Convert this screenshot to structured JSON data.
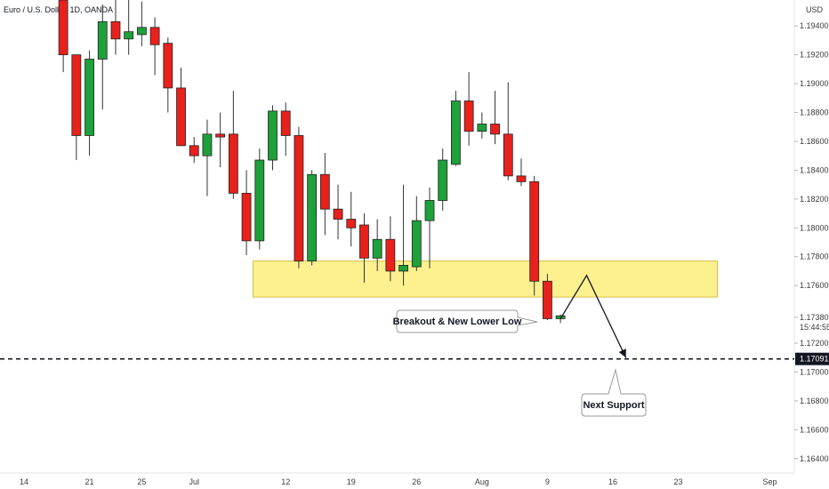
{
  "header": {
    "title": "Euro / U.S. Dollar, 1D, OANDA",
    "currency": "USD"
  },
  "colors": {
    "up": "#1ea03a",
    "down": "#e8211c",
    "zone_fill": "#fdf08e",
    "zone_stroke": "#d4c04a",
    "price_box": "#131722"
  },
  "chart_data": {
    "type": "candlestick",
    "ylim": [
      1.163,
      1.1958
    ],
    "y_ticks": [
      "1.19400",
      "1.19200",
      "1.19000",
      "1.18800",
      "1.18600",
      "1.18400",
      "1.18200",
      "1.18000",
      "1.17800",
      "1.17600",
      "1.17200",
      "1.17000",
      "1.16800",
      "1.16600",
      "1.16400"
    ],
    "x_ticks": [
      {
        "label": "14",
        "index": 0
      },
      {
        "label": "21",
        "index": 5
      },
      {
        "label": "25",
        "index": 9
      },
      {
        "label": "Jul",
        "index": 13
      },
      {
        "label": "12",
        "index": 20
      },
      {
        "label": "19",
        "index": 25
      },
      {
        "label": "26",
        "index": 30
      },
      {
        "label": "Aug",
        "index": 35
      },
      {
        "label": "9",
        "index": 40
      },
      {
        "label": "16",
        "index": 45
      },
      {
        "label": "23",
        "index": 50
      },
      {
        "label": "Sep",
        "index": 57
      }
    ],
    "candles": [
      {
        "i": 3,
        "o": 1.1958,
        "h": 1.1958,
        "l": 1.1908,
        "c": 1.192
      },
      {
        "i": 4,
        "o": 1.192,
        "h": 1.192,
        "l": 1.1847,
        "c": 1.1864
      },
      {
        "i": 5,
        "o": 1.1864,
        "h": 1.1923,
        "l": 1.185,
        "c": 1.1917
      },
      {
        "i": 6,
        "o": 1.1917,
        "h": 1.1955,
        "l": 1.1882,
        "c": 1.1943
      },
      {
        "i": 7,
        "o": 1.1943,
        "h": 1.1965,
        "l": 1.192,
        "c": 1.1931
      },
      {
        "i": 8,
        "o": 1.1931,
        "h": 1.1958,
        "l": 1.192,
        "c": 1.1936
      },
      {
        "i": 9,
        "o": 1.1934,
        "h": 1.1957,
        "l": 1.1926,
        "c": 1.1939
      },
      {
        "i": 10,
        "o": 1.1939,
        "h": 1.1946,
        "l": 1.1906,
        "c": 1.1927
      },
      {
        "i": 11,
        "o": 1.1928,
        "h": 1.1932,
        "l": 1.188,
        "c": 1.1897
      },
      {
        "i": 12,
        "o": 1.1897,
        "h": 1.1911,
        "l": 1.1857,
        "c": 1.1857
      },
      {
        "i": 13,
        "o": 1.1857,
        "h": 1.1863,
        "l": 1.1845,
        "c": 1.185
      },
      {
        "i": 14,
        "o": 1.185,
        "h": 1.1875,
        "l": 1.1822,
        "c": 1.1865
      },
      {
        "i": 15,
        "o": 1.1865,
        "h": 1.188,
        "l": 1.1842,
        "c": 1.1863
      },
      {
        "i": 16,
        "o": 1.1865,
        "h": 1.1895,
        "l": 1.182,
        "c": 1.1824
      },
      {
        "i": 17,
        "o": 1.1824,
        "h": 1.184,
        "l": 1.1781,
        "c": 1.1791
      },
      {
        "i": 18,
        "o": 1.1791,
        "h": 1.1855,
        "l": 1.1785,
        "c": 1.1847
      },
      {
        "i": 19,
        "o": 1.1847,
        "h": 1.1885,
        "l": 1.184,
        "c": 1.1881
      },
      {
        "i": 20,
        "o": 1.1881,
        "h": 1.1887,
        "l": 1.185,
        "c": 1.1864
      },
      {
        "i": 21,
        "o": 1.1864,
        "h": 1.187,
        "l": 1.1772,
        "c": 1.1777
      },
      {
        "i": 22,
        "o": 1.1777,
        "h": 1.184,
        "l": 1.1774,
        "c": 1.1837
      },
      {
        "i": 23,
        "o": 1.1837,
        "h": 1.1852,
        "l": 1.1795,
        "c": 1.1813
      },
      {
        "i": 24,
        "o": 1.1813,
        "h": 1.183,
        "l": 1.1792,
        "c": 1.1806
      },
      {
        "i": 25,
        "o": 1.1806,
        "h": 1.1825,
        "l": 1.1787,
        "c": 1.18
      },
      {
        "i": 26,
        "o": 1.1802,
        "h": 1.181,
        "l": 1.1762,
        "c": 1.1779
      },
      {
        "i": 27,
        "o": 1.1779,
        "h": 1.1806,
        "l": 1.177,
        "c": 1.1792
      },
      {
        "i": 28,
        "o": 1.1792,
        "h": 1.1808,
        "l": 1.1763,
        "c": 1.177
      },
      {
        "i": 29,
        "o": 1.177,
        "h": 1.183,
        "l": 1.176,
        "c": 1.1774
      },
      {
        "i": 30,
        "o": 1.1773,
        "h": 1.1822,
        "l": 1.177,
        "c": 1.1805
      },
      {
        "i": 31,
        "o": 1.1805,
        "h": 1.1828,
        "l": 1.1772,
        "c": 1.1819
      },
      {
        "i": 32,
        "o": 1.1819,
        "h": 1.1855,
        "l": 1.1812,
        "c": 1.1847
      },
      {
        "i": 33,
        "o": 1.1844,
        "h": 1.1895,
        "l": 1.1843,
        "c": 1.1888
      },
      {
        "i": 34,
        "o": 1.1888,
        "h": 1.1908,
        "l": 1.1857,
        "c": 1.1867
      },
      {
        "i": 35,
        "o": 1.1867,
        "h": 1.188,
        "l": 1.1862,
        "c": 1.1872
      },
      {
        "i": 36,
        "o": 1.1872,
        "h": 1.1895,
        "l": 1.1858,
        "c": 1.1865
      },
      {
        "i": 37,
        "o": 1.1865,
        "h": 1.1901,
        "l": 1.1833,
        "c": 1.1836
      },
      {
        "i": 38,
        "o": 1.1836,
        "h": 1.1848,
        "l": 1.1829,
        "c": 1.1832
      },
      {
        "i": 39,
        "o": 1.1832,
        "h": 1.1836,
        "l": 1.1753,
        "c": 1.1763
      },
      {
        "i": 40,
        "o": 1.1763,
        "h": 1.1768,
        "l": 1.1736,
        "c": 1.1737
      },
      {
        "i": 41,
        "o": 1.1737,
        "h": 1.174,
        "l": 1.1734,
        "c": 1.1739
      }
    ],
    "zone": {
      "y_top": 1.1777,
      "y_bottom": 1.1752,
      "i_start": 17.5,
      "i_end": 53
    },
    "support_level": 1.17091,
    "current_price": {
      "value": 1.1738,
      "label": "1.17380",
      "countdown": "15:44:55"
    },
    "support_label": "1.17091",
    "path": [
      {
        "i": 41,
        "y": 1.1737
      },
      {
        "i": 43,
        "y": 1.1767
      },
      {
        "i": 46,
        "y": 1.171
      }
    ],
    "annotations": {
      "breakout": "Breakout & New Lower Low",
      "next_support": "Next Support"
    }
  }
}
